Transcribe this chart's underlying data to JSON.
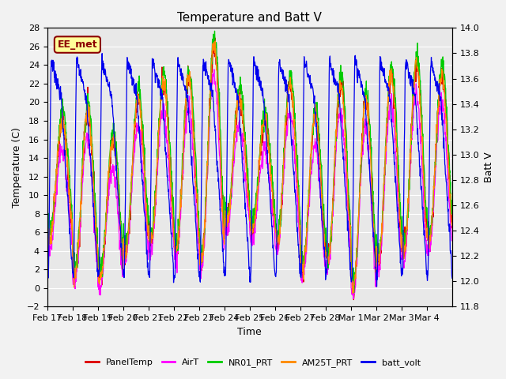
{
  "title": "Temperature and Batt V",
  "xlabel": "Time",
  "ylabel_left": "Temperature (C)",
  "ylabel_right": "Batt V",
  "ylim_left": [
    -2,
    28
  ],
  "ylim_right": [
    11.8,
    14.0
  ],
  "yticks_left": [
    -2,
    0,
    2,
    4,
    6,
    8,
    10,
    12,
    14,
    16,
    18,
    20,
    22,
    24,
    26,
    28
  ],
  "yticks_right": [
    11.8,
    12.0,
    12.2,
    12.4,
    12.6,
    12.8,
    13.0,
    13.2,
    13.4,
    13.6,
    13.8,
    14.0
  ],
  "xtick_labels": [
    "Feb 17",
    "Feb 18",
    "Feb 19",
    "Feb 20",
    "Feb 21",
    "Feb 22",
    "Feb 23",
    "Feb 24",
    "Feb 25",
    "Feb 26",
    "Feb 27",
    "Feb 28",
    "Mar 1",
    "Mar 2",
    "Mar 3",
    "Mar 4"
  ],
  "colors": {
    "PanelTemp": "#dd0000",
    "AirT": "#ff00ff",
    "NR01_PRT": "#00cc00",
    "AM25T_PRT": "#ff8800",
    "batt_volt": "#0000ee"
  },
  "legend_labels": [
    "PanelTemp",
    "AirT",
    "NR01_PRT",
    "AM25T_PRT",
    "batt_volt"
  ],
  "annotation_text": "EE_met",
  "annotation_color": "#8b0000",
  "annotation_bg": "#ffff99",
  "plot_bg": "#e8e8e8",
  "fig_bg": "#f2f2f2",
  "line_width": 0.9,
  "n_points": 1440
}
